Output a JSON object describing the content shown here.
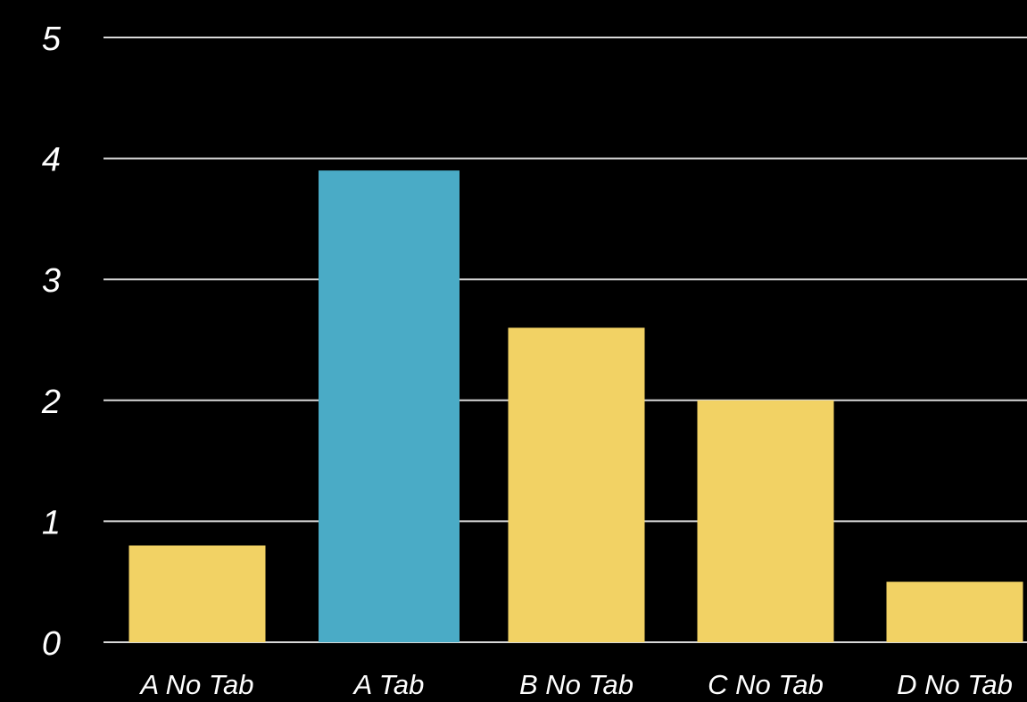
{
  "chart_data": {
    "type": "bar",
    "categories": [
      "A No Tab",
      "A Tab",
      "B No Tab",
      "C No Tab",
      "D No Tab"
    ],
    "values": [
      0.8,
      3.9,
      2.6,
      2.0,
      0.5
    ],
    "bar_colors": [
      "#f2d264",
      "#4aabc6",
      "#f2d264",
      "#f2d264",
      "#f2d264"
    ],
    "ylim": [
      0,
      5
    ],
    "yticks": [
      0,
      1,
      2,
      3,
      4,
      5
    ],
    "grid": true,
    "title": "",
    "xlabel": "",
    "ylabel": ""
  },
  "colors": {
    "background": "#000000",
    "grid": "#d9d9d9",
    "text": "#ffffff"
  }
}
